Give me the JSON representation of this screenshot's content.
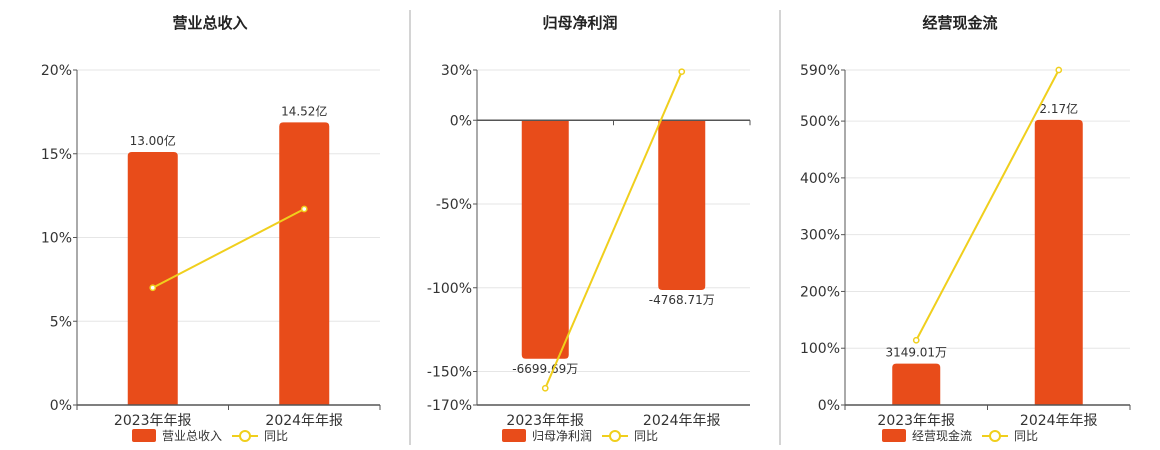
{
  "colors": {
    "bar": "#e84c1a",
    "line": "#f0cf1d",
    "grid": "#e6e6e6",
    "axis": "#555555",
    "divider": "#aaaaaa"
  },
  "chart_data": [
    {
      "type": "bar",
      "title": "营业总收入",
      "categories": [
        "2023年年报",
        "2024年年报"
      ],
      "bar_series": {
        "name": "营业总收入",
        "values": [
          13.0,
          14.52
        ],
        "labels": [
          "13.00亿",
          "14.52亿"
        ]
      },
      "line_series": {
        "name": "同比",
        "values": [
          7.0,
          11.7
        ]
      },
      "y_ticks": [
        "20%",
        "15%",
        "10%",
        "5%",
        "0%"
      ],
      "ylim": [
        0,
        20
      ],
      "bar_scale": {
        "min": 0,
        "max": 17.21
      },
      "grid": true,
      "legend": "bottom"
    },
    {
      "type": "bar",
      "title": "归母净利润",
      "categories": [
        "2023年年报",
        "2024年年报"
      ],
      "bar_series": {
        "name": "归母净利润",
        "values": [
          -6699.69,
          -4768.71
        ],
        "labels": [
          "-6699.69万",
          "-4768.71万"
        ]
      },
      "line_series": {
        "name": "同比",
        "values": [
          -160,
          29
        ]
      },
      "y_ticks": [
        "30%",
        "0%",
        "-50%",
        "-100%",
        "-150%",
        "-170%"
      ],
      "ylim": [
        -170,
        30
      ],
      "bar_scale": {
        "min": -7998,
        "max": 1411
      },
      "grid": true,
      "legend": "bottom"
    },
    {
      "type": "bar",
      "title": "经营现金流",
      "categories": [
        "2023年年报",
        "2024年年报"
      ],
      "bar_series": {
        "name": "经营现金流",
        "values": [
          3149.01,
          21700
        ],
        "labels": [
          "3149.01万",
          "2.17亿"
        ]
      },
      "line_series": {
        "name": "同比",
        "values": [
          114,
          590
        ]
      },
      "y_ticks": [
        "590%",
        "500%",
        "400%",
        "300%",
        "200%",
        "100%",
        "0%"
      ],
      "ylim": [
        0,
        590
      ],
      "bar_scale": {
        "min": 0,
        "max": 25500
      },
      "grid": true,
      "legend": "bottom"
    }
  ]
}
